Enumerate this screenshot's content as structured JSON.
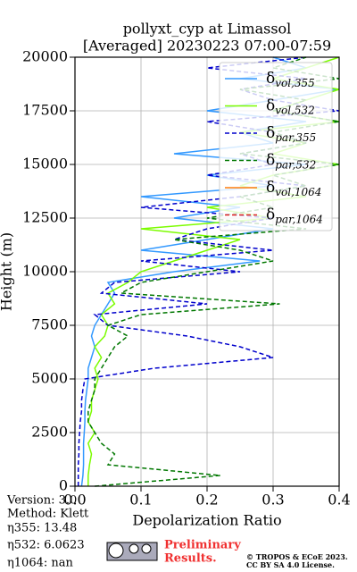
{
  "chart_data": {
    "type": "line",
    "title": "pollyxt_cyp at Limassol",
    "subtitle": "[Averaged] 20230223 07:00-07:59",
    "x_label": "Depolarization Ratio",
    "y_label": "Height (m)",
    "y": [
      0,
      500,
      1000,
      1500,
      2000,
      2500,
      3000,
      3500,
      4000,
      4500,
      5000,
      5500,
      6000,
      6500,
      7000,
      7500,
      8000,
      8500,
      9000,
      9500,
      10000,
      10500,
      11000,
      11500,
      12000,
      12500,
      13000,
      13500,
      14000,
      14500,
      15000,
      15500,
      16000,
      16500,
      17000,
      17500,
      18000,
      18500,
      19000,
      19500,
      20000
    ],
    "series": [
      {
        "name": "δvol,355",
        "color": "#3399ff",
        "dash": false,
        "values": [
          0.01,
          0.012,
          0.013,
          0.013,
          0.013,
          0.014,
          0.015,
          0.015,
          0.016,
          0.018,
          0.02,
          0.02,
          0.025,
          0.03,
          0.025,
          0.03,
          0.04,
          0.05,
          0.06,
          0.05,
          0.15,
          0.28,
          0.1,
          0.2,
          0.3,
          0.15,
          0.25,
          0.1,
          0.3,
          0.2,
          0.35,
          0.15,
          0.3,
          0.25,
          0.35,
          0.2,
          0.3,
          0.4,
          0.25,
          0.35,
          0.3
        ]
      },
      {
        "name": "δvol,532",
        "color": "#7cfc00",
        "dash": false,
        "values": [
          0.02,
          0.02,
          0.022,
          0.025,
          0.02,
          0.03,
          0.02,
          0.025,
          0.025,
          0.03,
          0.035,
          0.03,
          0.04,
          0.03,
          0.045,
          0.05,
          0.04,
          0.06,
          0.05,
          0.08,
          0.1,
          0.15,
          0.2,
          0.25,
          0.1,
          0.3,
          0.2,
          0.35,
          0.25,
          0.3,
          0.4,
          0.3,
          0.35,
          0.25,
          0.4,
          0.3,
          0.35,
          0.4,
          0.3,
          0.35,
          0.4
        ]
      },
      {
        "name": "δpar,355",
        "color": "#0000cc",
        "dash": true,
        "values": [
          0.005,
          0.005,
          0.005,
          0.006,
          0.006,
          0.007,
          0.008,
          0.01,
          0.01,
          0.012,
          0.015,
          0.12,
          0.3,
          0.25,
          0.17,
          0.05,
          0.03,
          0.2,
          0.04,
          0.06,
          0.25,
          0.1,
          0.3,
          0.15,
          0.2,
          0.3,
          0.1,
          0.25,
          0.35,
          0.2,
          0.3,
          0.25,
          0.35,
          0.3,
          0.2,
          0.4,
          0.3,
          0.25,
          0.35,
          0.2,
          0.35
        ]
      },
      {
        "name": "δpar,532",
        "color": "#007700",
        "dash": true,
        "values": [
          0.03,
          0.22,
          0.05,
          0.06,
          0.04,
          0.03,
          0.02,
          0.02,
          0.025,
          0.03,
          0.03,
          0.04,
          0.05,
          0.06,
          0.08,
          0.05,
          0.1,
          0.31,
          0.07,
          0.1,
          0.2,
          0.3,
          0.25,
          0.15,
          0.35,
          0.2,
          0.3,
          0.25,
          0.35,
          0.3,
          0.4,
          0.25,
          0.35,
          0.3,
          0.4,
          0.3,
          0.35,
          0.25,
          0.4,
          0.3,
          0.35
        ]
      },
      {
        "name": "δvol,1064",
        "color": "#ff7f0e",
        "dash": false,
        "values": [
          null,
          null,
          null,
          null,
          null,
          null,
          null,
          null,
          null,
          null,
          null,
          null,
          null,
          null,
          null,
          null,
          null,
          null,
          null,
          null,
          null,
          null,
          null,
          null,
          null,
          null,
          null,
          null,
          null,
          null,
          null,
          null,
          null,
          null,
          null,
          null,
          null,
          null,
          null,
          null,
          null
        ]
      },
      {
        "name": "δpar,1064",
        "color": "#dd2222",
        "dash": true,
        "values": [
          null,
          null,
          null,
          null,
          null,
          null,
          null,
          null,
          null,
          null,
          null,
          null,
          null,
          null,
          null,
          null,
          null,
          null,
          null,
          null,
          null,
          null,
          null,
          null,
          null,
          null,
          null,
          null,
          null,
          null,
          null,
          null,
          null,
          null,
          null,
          null,
          null,
          null,
          null,
          null,
          null
        ]
      }
    ],
    "xlim": [
      0,
      0.4
    ],
    "xticks": [
      {
        "value": 0,
        "label": "0.0"
      },
      0.1,
      0.2,
      0.3,
      0.4
    ],
    "ylim": [
      0,
      20000
    ],
    "yticks": [
      0,
      2500,
      5000,
      7500,
      10000,
      12500,
      15000,
      17500,
      20000
    ],
    "grid": true,
    "legend": "upper right"
  },
  "footer": {
    "info": [
      "Version: 3.0",
      "Method: Klett",
      "η355:  13.48",
      "η532: 6.0623",
      "η1064:    nan"
    ],
    "notice": [
      "Preliminary",
      "Results."
    ],
    "license": [
      "© TROPOS & ECoE 2023.",
      "CC BY SA 4.0 License."
    ]
  }
}
